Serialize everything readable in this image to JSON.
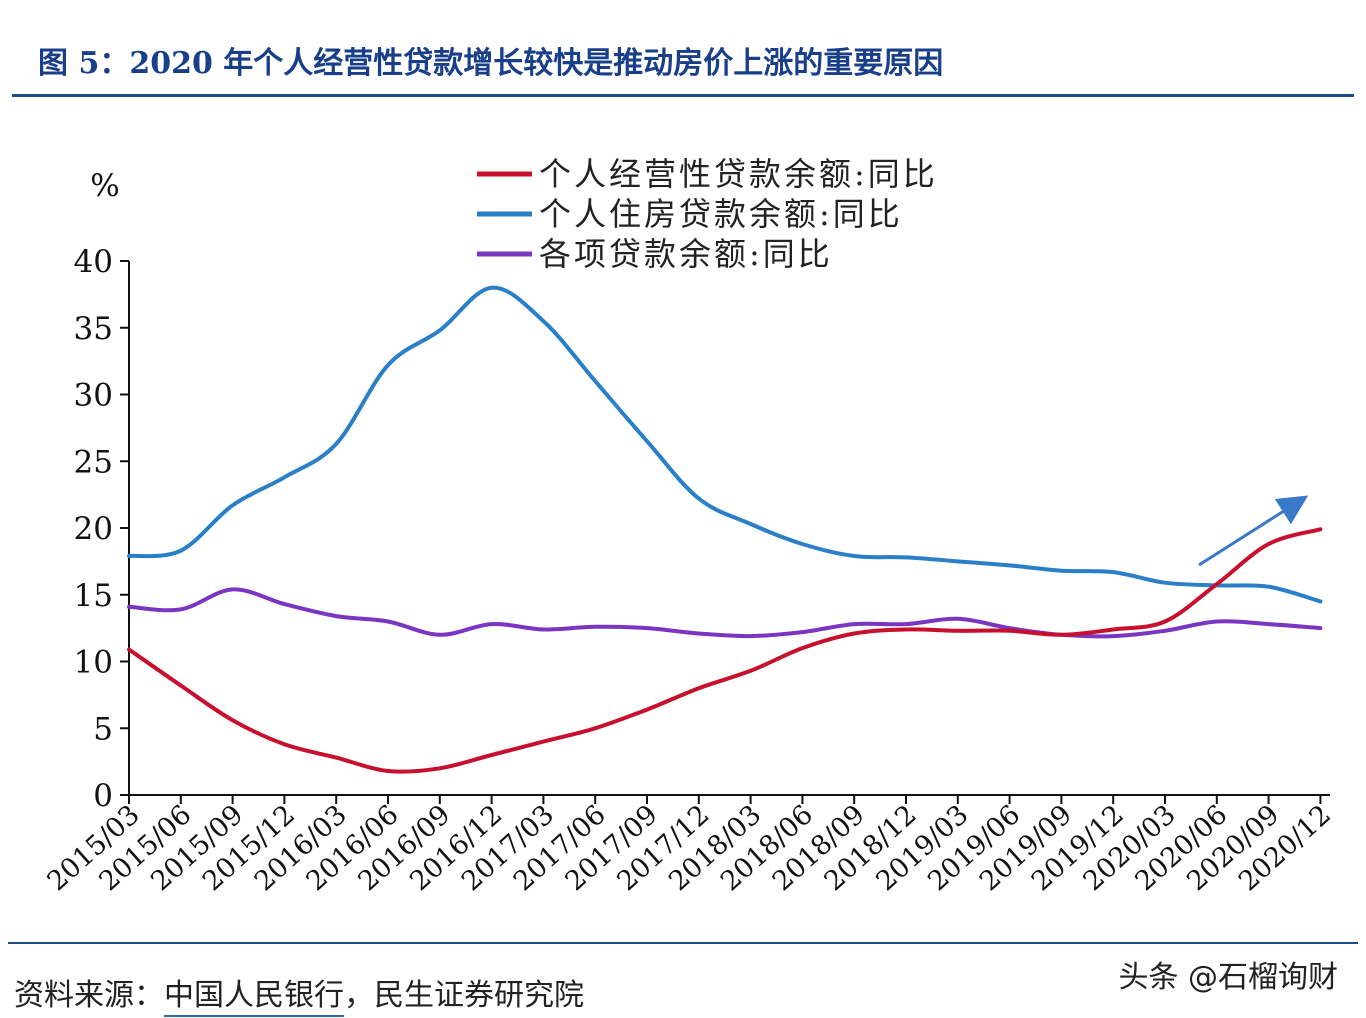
{
  "figure": {
    "title": "图 5：2020 年个人经营性贷款增长较快是推动房价上涨的重要原因",
    "source_label": "资料来源：",
    "source_org": "中国人民银行",
    "source_rest": "，民生证券研究院",
    "watermark": "头条 @石榴询财"
  },
  "colors": {
    "business": "#c8102e",
    "housing": "#2a7fc9",
    "total": "#7b35c2",
    "title": "#1a3f8a",
    "arrow": "#3a78c8"
  },
  "chart_data": {
    "type": "line",
    "ylabel": "%",
    "ylim": [
      0,
      40
    ],
    "yticks": [
      0,
      5,
      10,
      15,
      20,
      25,
      30,
      35,
      40
    ],
    "categories": [
      "2015/03",
      "2015/06",
      "2015/09",
      "2015/12",
      "2016/03",
      "2016/06",
      "2016/09",
      "2016/12",
      "2017/03",
      "2017/06",
      "2017/09",
      "2017/12",
      "2018/03",
      "2018/06",
      "2018/09",
      "2018/12",
      "2019/03",
      "2019/06",
      "2019/09",
      "2019/12",
      "2020/03",
      "2020/06",
      "2020/09",
      "2020/12"
    ],
    "legend_position": "top-center",
    "series": [
      {
        "name": "个人经营性贷款余额:同比",
        "color_key": "business",
        "values": [
          10.9,
          8.2,
          5.6,
          3.8,
          2.8,
          1.8,
          2.0,
          3.0,
          4.0,
          5.0,
          6.4,
          8.0,
          9.3,
          11.0,
          12.1,
          12.4,
          12.3,
          12.3,
          12.0,
          12.4,
          13.0,
          15.8,
          18.8,
          19.9
        ]
      },
      {
        "name": "个人住房贷款余额:同比",
        "color_key": "housing",
        "values": [
          17.9,
          18.3,
          21.7,
          23.8,
          26.3,
          32.2,
          34.8,
          38.0,
          35.5,
          31.0,
          26.5,
          22.2,
          20.3,
          18.8,
          17.9,
          17.8,
          17.5,
          17.2,
          16.8,
          16.7,
          15.9,
          15.7,
          15.6,
          14.5
        ]
      },
      {
        "name": "各项贷款余额:同比",
        "color_key": "total",
        "values": [
          14.1,
          13.9,
          15.4,
          14.3,
          13.4,
          13.0,
          12.0,
          12.8,
          12.4,
          12.6,
          12.5,
          12.1,
          11.9,
          12.2,
          12.8,
          12.8,
          13.2,
          12.5,
          12.0,
          11.9,
          12.3,
          13.0,
          12.8,
          12.5
        ]
      }
    ]
  }
}
